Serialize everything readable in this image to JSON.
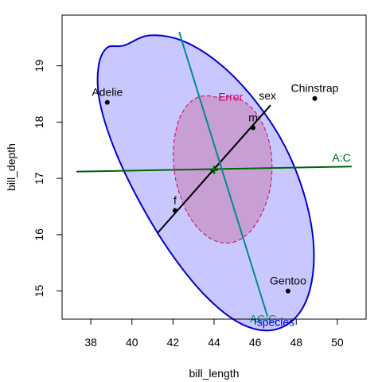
{
  "chart_data": {
    "type": "scatter",
    "title": "",
    "xlabel": "bill_length",
    "ylabel": "bill_depth",
    "xlim": [
      36.6,
      51.4
    ],
    "ylim": [
      14.5,
      19.9
    ],
    "xticks": [
      38,
      40,
      42,
      44,
      46,
      48,
      50
    ],
    "yticks": [
      15,
      16,
      17,
      18,
      19
    ],
    "grid": false,
    "colors": {
      "species": "#0000cd",
      "species_fill": "#c8c8ff",
      "error": "#cd0060",
      "error_fill": "#c89fd5",
      "sex": "#000000",
      "ac": "#006400",
      "acg": "#008b8b"
    },
    "center": [
      44.0,
      17.15
    ],
    "group_points": [
      {
        "label": "Adelie",
        "x": 38.8,
        "y": 18.35
      },
      {
        "label": "Chinstrap",
        "x": 48.9,
        "y": 18.42
      },
      {
        "label": "Gentoo",
        "x": 47.6,
        "y": 15.0
      }
    ],
    "sex_points": [
      {
        "label": "m",
        "x": 45.9,
        "y": 17.9
      },
      {
        "label": "f",
        "x": 42.1,
        "y": 16.43
      }
    ],
    "ellipses": [
      {
        "label": "species",
        "label_pos": [
          47.0,
          14.55
        ],
        "cx": 44.0,
        "cy": 17.15,
        "points": [
          [
            39.61,
            19.36
          ],
          [
            40.85,
            19.54
          ],
          [
            42.49,
            19.44
          ],
          [
            44.29,
            19.03
          ],
          [
            46.0,
            18.38
          ],
          [
            47.45,
            17.57
          ],
          [
            48.42,
            16.67
          ],
          [
            48.85,
            15.79
          ],
          [
            48.67,
            15.03
          ],
          [
            47.95,
            14.52
          ],
          [
            46.73,
            14.3
          ],
          [
            45.2,
            14.44
          ],
          [
            43.51,
            14.94
          ],
          [
            41.81,
            15.72
          ],
          [
            40.29,
            16.64
          ],
          [
            39.12,
            17.55
          ],
          [
            38.43,
            18.37
          ],
          [
            38.37,
            18.98
          ],
          [
            38.79,
            19.32
          ]
        ]
      },
      {
        "label": "Error",
        "label_pos": [
          44.8,
          18.45
        ],
        "cx": 44.0,
        "cy": 17.15,
        "points": [
          [
            44.63,
            18.45
          ],
          [
            45.27,
            18.4
          ],
          [
            45.84,
            18.25
          ],
          [
            46.32,
            18.0
          ],
          [
            46.65,
            17.69
          ],
          [
            46.81,
            17.34
          ],
          [
            46.79,
            16.97
          ],
          [
            46.59,
            16.62
          ],
          [
            46.23,
            16.31
          ],
          [
            45.76,
            16.06
          ],
          [
            45.19,
            15.9
          ],
          [
            44.57,
            15.85
          ],
          [
            43.94,
            15.91
          ],
          [
            43.34,
            16.07
          ],
          [
            42.82,
            16.31
          ],
          [
            42.41,
            16.63
          ],
          [
            42.13,
            16.98
          ],
          [
            42.02,
            17.35
          ],
          [
            42.07,
            17.71
          ],
          [
            42.28,
            18.03
          ],
          [
            42.63,
            18.27
          ],
          [
            43.09,
            18.42
          ],
          [
            43.63,
            18.47
          ],
          [
            44.17,
            18.44
          ]
        ]
      }
    ],
    "lines": [
      {
        "label": "sex",
        "from": [
          41.25,
          16.03
        ],
        "to": [
          46.75,
          18.3
        ],
        "label_pos": [
          46.6,
          18.4
        ]
      },
      {
        "label": "A:C",
        "from": [
          37.3,
          17.12
        ],
        "to": [
          50.7,
          17.21
        ],
        "label_pos": [
          50.2,
          17.3
        ]
      },
      {
        "label": "AC:G",
        "from": [
          42.3,
          19.6
        ],
        "to": [
          46.6,
          14.55
        ],
        "label_pos": [
          46.55,
          14.52
        ]
      }
    ]
  }
}
